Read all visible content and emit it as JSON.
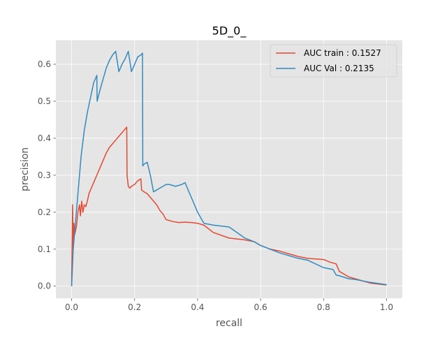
{
  "chart_data": {
    "type": "line",
    "title": "5D_0_",
    "xlabel": "recall",
    "ylabel": "precision",
    "xlim": [
      -0.05,
      1.05
    ],
    "ylim": [
      -0.033,
      0.665
    ],
    "xticks": [
      0.0,
      0.2,
      0.4,
      0.6,
      0.8,
      1.0
    ],
    "yticks": [
      0.0,
      0.1,
      0.2,
      0.3,
      0.4,
      0.5,
      0.6
    ],
    "xtick_labels": [
      "0.0",
      "0.2",
      "0.4",
      "0.6",
      "0.8",
      "1.0"
    ],
    "ytick_labels": [
      "0.0",
      "0.1",
      "0.2",
      "0.3",
      "0.4",
      "0.5",
      "0.6"
    ],
    "grid": true,
    "legend_position": "top-right",
    "series": [
      {
        "name": "AUC train : 0.1527",
        "color": "#E24A33",
        "x": [
          0.0,
          0.003,
          0.005,
          0.007,
          0.01,
          0.015,
          0.02,
          0.025,
          0.028,
          0.032,
          0.036,
          0.04,
          0.045,
          0.05,
          0.055,
          0.06,
          0.065,
          0.07,
          0.075,
          0.08,
          0.09,
          0.1,
          0.11,
          0.12,
          0.13,
          0.14,
          0.15,
          0.16,
          0.17,
          0.175,
          0.176,
          0.18,
          0.185,
          0.19,
          0.2,
          0.21,
          0.22,
          0.222,
          0.23,
          0.24,
          0.25,
          0.27,
          0.28,
          0.29,
          0.3,
          0.32,
          0.34,
          0.36,
          0.38,
          0.4,
          0.42,
          0.45,
          0.5,
          0.55,
          0.58,
          0.6,
          0.63,
          0.66,
          0.7,
          0.72,
          0.75,
          0.8,
          0.82,
          0.84,
          0.85,
          0.88,
          0.9,
          0.92,
          0.95,
          1.0
        ],
        "y": [
          0.0,
          0.22,
          0.1,
          0.17,
          0.14,
          0.16,
          0.2,
          0.22,
          0.19,
          0.23,
          0.2,
          0.22,
          0.215,
          0.23,
          0.25,
          0.26,
          0.27,
          0.28,
          0.29,
          0.3,
          0.32,
          0.34,
          0.36,
          0.375,
          0.385,
          0.395,
          0.405,
          0.415,
          0.425,
          0.43,
          0.3,
          0.27,
          0.265,
          0.27,
          0.275,
          0.285,
          0.29,
          0.26,
          0.255,
          0.25,
          0.24,
          0.22,
          0.205,
          0.195,
          0.18,
          0.175,
          0.172,
          0.173,
          0.172,
          0.17,
          0.165,
          0.145,
          0.13,
          0.125,
          0.12,
          0.11,
          0.1,
          0.095,
          0.085,
          0.08,
          0.075,
          0.072,
          0.065,
          0.06,
          0.04,
          0.025,
          0.02,
          0.015,
          0.008,
          0.003
        ]
      },
      {
        "name": "AUC Val : 0.2135",
        "color": "#348ABD",
        "x": [
          0.0,
          0.005,
          0.01,
          0.02,
          0.03,
          0.04,
          0.05,
          0.06,
          0.07,
          0.08,
          0.081,
          0.09,
          0.1,
          0.11,
          0.12,
          0.13,
          0.14,
          0.15,
          0.16,
          0.17,
          0.18,
          0.19,
          0.2,
          0.21,
          0.22,
          0.225,
          0.226,
          0.23,
          0.24,
          0.25,
          0.26,
          0.27,
          0.28,
          0.29,
          0.3,
          0.31,
          0.33,
          0.35,
          0.36,
          0.38,
          0.4,
          0.42,
          0.45,
          0.5,
          0.55,
          0.58,
          0.6,
          0.63,
          0.66,
          0.7,
          0.72,
          0.75,
          0.8,
          0.83,
          0.84,
          0.85,
          0.88,
          0.9,
          0.95,
          1.0
        ],
        "y": [
          0.0,
          0.1,
          0.15,
          0.25,
          0.35,
          0.42,
          0.47,
          0.51,
          0.55,
          0.57,
          0.5,
          0.53,
          0.56,
          0.59,
          0.61,
          0.625,
          0.635,
          0.58,
          0.6,
          0.615,
          0.635,
          0.58,
          0.6,
          0.62,
          0.625,
          0.63,
          0.325,
          0.33,
          0.335,
          0.3,
          0.255,
          0.26,
          0.265,
          0.27,
          0.275,
          0.275,
          0.27,
          0.275,
          0.28,
          0.24,
          0.2,
          0.17,
          0.165,
          0.16,
          0.13,
          0.12,
          0.11,
          0.1,
          0.09,
          0.08,
          0.075,
          0.07,
          0.05,
          0.045,
          0.03,
          0.028,
          0.02,
          0.018,
          0.01,
          0.004
        ]
      }
    ]
  }
}
